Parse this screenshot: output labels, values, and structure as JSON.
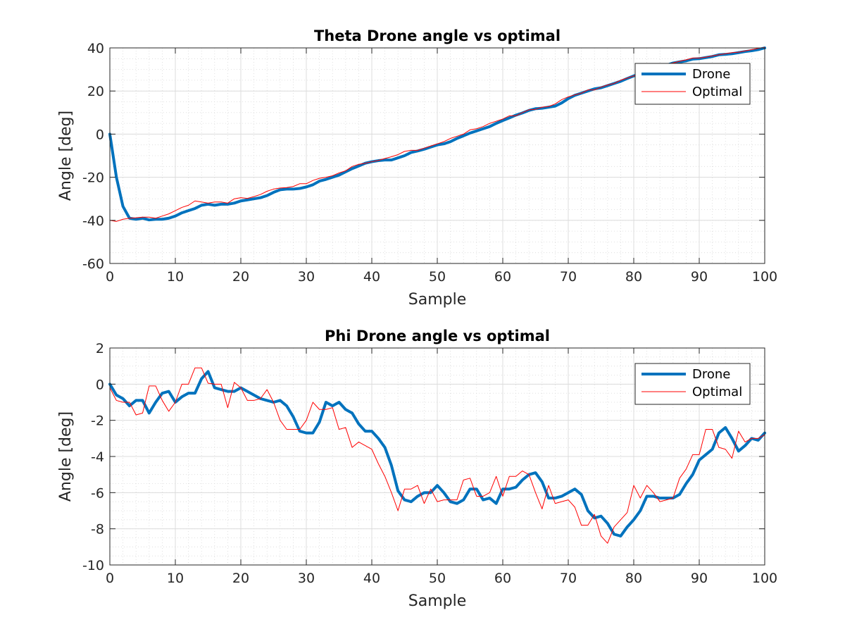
{
  "chart_data": [
    {
      "type": "line",
      "title": "Theta Drone angle vs optimal",
      "xlabel": "Sample",
      "ylabel": "Angle [deg]",
      "xlim": [
        0,
        100
      ],
      "ylim": [
        -60,
        40
      ],
      "xticks": [
        0,
        10,
        20,
        30,
        40,
        50,
        60,
        70,
        80,
        90,
        100
      ],
      "yticks": [
        -60,
        -40,
        -20,
        0,
        20,
        40
      ],
      "grid": true,
      "minor_grid": true,
      "legend": "top-right",
      "series": [
        {
          "name": "Drone",
          "color": "#0072BD",
          "values": [
            0,
            -20,
            -33.5,
            -39,
            -39.5,
            -39,
            -39.8,
            -39.5,
            -39.5,
            -39,
            -38,
            -36.5,
            -35.5,
            -34.5,
            -33,
            -32.5,
            -33,
            -32.5,
            -32.5,
            -32,
            -31,
            -30.5,
            -30,
            -29.5,
            -28.5,
            -27,
            -25.8,
            -25.5,
            -25.5,
            -25.2,
            -24.5,
            -23.5,
            -21.8,
            -21,
            -20,
            -19,
            -17.5,
            -16,
            -14.8,
            -13.5,
            -12.8,
            -12.3,
            -12,
            -12,
            -11,
            -10,
            -8.5,
            -7.8,
            -7,
            -6,
            -5,
            -4.5,
            -3.5,
            -2,
            -0.8,
            0.5,
            1.5,
            2.5,
            3.5,
            5,
            6.3,
            7.5,
            8.8,
            9.8,
            11,
            11.8,
            12,
            12.5,
            13,
            14.5,
            16.5,
            18,
            19,
            20,
            21,
            21.5,
            22.5,
            23.5,
            24.5,
            25.8,
            27,
            28,
            29,
            30,
            31,
            32,
            33,
            33.5,
            34,
            34.8,
            35,
            35.5,
            36,
            36.8,
            37,
            37.3,
            37.8,
            38.3,
            38.7,
            39.2,
            40
          ]
        },
        {
          "name": "Optimal",
          "color": "#FF0000",
          "values": [
            -40,
            -40.5,
            -39.5,
            -39,
            -38.8,
            -38.5,
            -38.5,
            -39,
            -38,
            -37,
            -35.5,
            -34,
            -33,
            -31,
            -31.5,
            -32,
            -31.5,
            -31.5,
            -32,
            -30,
            -29.5,
            -29.8,
            -29,
            -28,
            -26.5,
            -25.5,
            -25,
            -24.8,
            -24.3,
            -23,
            -23,
            -21.5,
            -20.5,
            -20,
            -19.3,
            -18,
            -17,
            -15,
            -14,
            -13.5,
            -12.8,
            -12.2,
            -11.3,
            -10.5,
            -9.5,
            -8,
            -7.5,
            -7.5,
            -6.5,
            -5.5,
            -4.5,
            -3.5,
            -2,
            -1,
            0,
            2,
            2.5,
            3.5,
            5,
            6,
            7,
            8.5,
            8.5,
            10,
            11.3,
            11.5,
            12.5,
            12.8,
            14,
            16,
            17.3,
            18.2,
            19,
            20.5,
            20.5,
            21.8,
            22.8,
            23.5,
            25,
            26,
            27,
            28.5,
            29.5,
            30.5,
            31.5,
            32.5,
            33,
            33.8,
            34.5,
            35.3,
            35.3,
            35.7,
            36.3,
            36.8,
            37.3,
            37.8,
            38,
            38.6,
            39.2,
            39.8,
            40.2
          ]
        }
      ]
    },
    {
      "type": "line",
      "title": "Phi Drone angle vs optimal",
      "xlabel": "Sample",
      "ylabel": "Angle [deg]",
      "xlim": [
        0,
        100
      ],
      "ylim": [
        -10,
        2
      ],
      "xticks": [
        0,
        10,
        20,
        30,
        40,
        50,
        60,
        70,
        80,
        90,
        100
      ],
      "yticks": [
        -10,
        -8,
        -6,
        -4,
        -2,
        0,
        2
      ],
      "grid": true,
      "minor_grid": true,
      "legend": "top-right",
      "series": [
        {
          "name": "Drone",
          "color": "#0072BD",
          "values": [
            0,
            -0.6,
            -0.8,
            -1.2,
            -0.9,
            -0.9,
            -1.6,
            -1.0,
            -0.5,
            -0.4,
            -1.0,
            -0.7,
            -0.5,
            -0.5,
            0.3,
            0.7,
            -0.2,
            -0.3,
            -0.4,
            -0.4,
            -0.2,
            -0.4,
            -0.6,
            -0.8,
            -0.9,
            -1.0,
            -0.9,
            -1.2,
            -1.8,
            -2.6,
            -2.7,
            -2.7,
            -2.1,
            -1.0,
            -1.2,
            -1.0,
            -1.4,
            -1.6,
            -2.2,
            -2.6,
            -2.6,
            -3.0,
            -3.5,
            -4.5,
            -5.9,
            -6.4,
            -6.5,
            -6.2,
            -6.0,
            -6.0,
            -5.6,
            -6.0,
            -6.5,
            -6.6,
            -6.4,
            -5.8,
            -5.8,
            -6.4,
            -6.3,
            -6.6,
            -5.8,
            -5.8,
            -5.7,
            -5.3,
            -5.0,
            -4.9,
            -5.4,
            -6.3,
            -6.3,
            -6.2,
            -6.0,
            -5.8,
            -6.1,
            -7.0,
            -7.4,
            -7.3,
            -7.7,
            -8.3,
            -8.4,
            -7.9,
            -7.5,
            -7.0,
            -6.2,
            -6.2,
            -6.3,
            -6.3,
            -6.3,
            -6.1,
            -5.5,
            -5.0,
            -4.2,
            -3.9,
            -3.6,
            -2.7,
            -2.4,
            -3.0,
            -3.7,
            -3.4,
            -3.0,
            -3.1,
            -2.7
          ]
        },
        {
          "name": "Optimal",
          "color": "#FF0000",
          "values": [
            -0.2,
            -0.9,
            -1.0,
            -1.0,
            -1.7,
            -1.6,
            -0.1,
            -0.1,
            -0.9,
            -1.5,
            -1.0,
            0,
            0,
            0.9,
            0.9,
            0.05,
            0,
            0,
            -1.3,
            0.1,
            -0.2,
            -0.9,
            -0.9,
            -0.8,
            -0.3,
            -1.0,
            -2.0,
            -2.5,
            -2.5,
            -2.5,
            -2.0,
            -1.0,
            -1.4,
            -1.4,
            -1.3,
            -2.5,
            -2.4,
            -3.5,
            -3.2,
            -3.4,
            -3.6,
            -4.4,
            -5.1,
            -6.0,
            -7.0,
            -5.8,
            -5.8,
            -5.6,
            -6.6,
            -5.8,
            -6.5,
            -6.4,
            -6.4,
            -6.4,
            -5.3,
            -5.2,
            -6.2,
            -6.2,
            -6.0,
            -5.1,
            -6.2,
            -5.1,
            -5.1,
            -4.8,
            -5.0,
            -6.0,
            -6.9,
            -5.6,
            -6.6,
            -6.5,
            -6.4,
            -6.8,
            -7.8,
            -7.8,
            -7.2,
            -8.4,
            -8.8,
            -7.9,
            -7.5,
            -7.1,
            -5.6,
            -6.3,
            -5.6,
            -6.0,
            -6.5,
            -6.4,
            -6.3,
            -5.2,
            -4.7,
            -3.9,
            -3.9,
            -2.5,
            -2.5,
            -3.5,
            -3.6,
            -4.1,
            -2.6,
            -3.2,
            -3.0,
            -3.0,
            -2.8
          ]
        }
      ]
    }
  ]
}
